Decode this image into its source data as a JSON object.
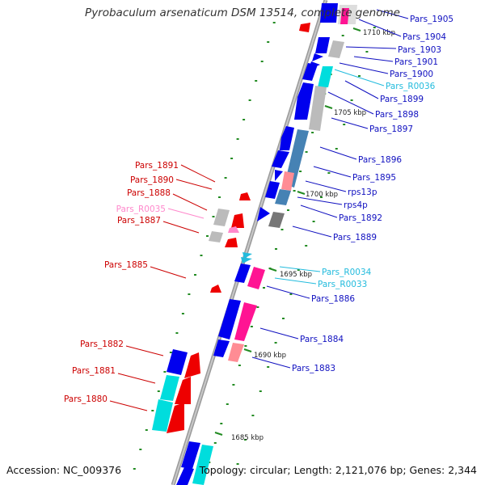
{
  "title": "Pyrobaculum arsenaticum DSM 13514, complete genome",
  "footer": {
    "accession": "Accession: NC_009376",
    "summary": "Topology: circular; Length: 2,121,076 bp; Genes: 2,344"
  },
  "colors": {
    "forward_cds": "#0000ee",
    "reverse_cds": "#ee0000",
    "gray": "#bbbbbb",
    "cyan": "#00dddd",
    "magenta": "#ff1493",
    "pink": "#ff8c94",
    "steel": "#4682b4",
    "tick": "#228b22",
    "label_forward": "#1010c0",
    "label_reverse": "#cc0000",
    "label_rna_forward": "#22bbdd",
    "label_rna_reverse": "#ff88cc"
  },
  "scale_labels": [
    "1710 kbp",
    "1705 kbp",
    "1700 kbp",
    "1695 kbp",
    "1690 kbp",
    "1685 kbp"
  ],
  "right_labels": [
    "Pars_1905",
    "Pars_1904",
    "Pars_1903",
    "Pars_1901",
    "Pars_1900",
    "Pars_R0036",
    "Pars_1899",
    "Pars_1898",
    "Pars_1897",
    "Pars_1896",
    "Pars_1895",
    "rps13p",
    "rps4p",
    "Pars_1892",
    "Pars_1889",
    "Pars_R0034",
    "Pars_R0033",
    "Pars_1886",
    "Pars_1884",
    "Pars_1883"
  ],
  "left_labels": [
    "Pars_1891",
    "Pars_1890",
    "Pars_1888",
    "Pars_R0035",
    "Pars_1887",
    "Pars_1885",
    "Pars_1882",
    "Pars_1881",
    "Pars_1880"
  ]
}
